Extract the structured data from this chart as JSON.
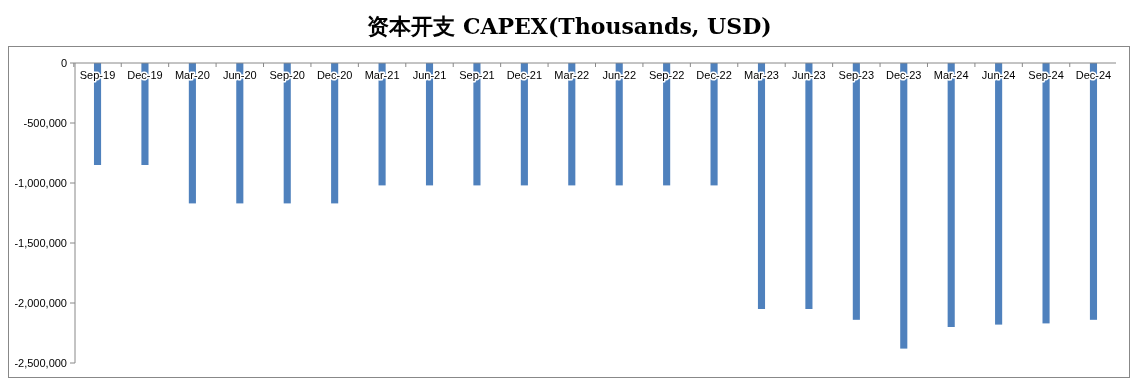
{
  "chart_data": {
    "type": "bar",
    "title": "资本开支 CAPEX(Thousands, USD)",
    "categories": [
      "Sep-19",
      "Dec-19",
      "Mar-20",
      "Jun-20",
      "Sep-20",
      "Dec-20",
      "Mar-21",
      "Jun-21",
      "Sep-21",
      "Dec-21",
      "Mar-22",
      "Jun-22",
      "Sep-22",
      "Dec-22",
      "Mar-23",
      "Jun-23",
      "Sep-23",
      "Dec-23",
      "Mar-24",
      "Jun-24",
      "Sep-24",
      "Dec-24"
    ],
    "values": [
      -850000,
      -850000,
      -1170000,
      -1170000,
      -1170000,
      -1170000,
      -1020000,
      -1020000,
      -1020000,
      -1020000,
      -1020000,
      -1020000,
      -1020000,
      -1020000,
      -2050000,
      -2050000,
      -2140000,
      -2380000,
      -2200000,
      -2180000,
      -2170000,
      -2140000
    ],
    "color": "#4f81bd",
    "ylim": [
      -2500000,
      0
    ],
    "yticks": [
      {
        "value": -2500000,
        "label": "-2,500,000"
      },
      {
        "value": -2000000,
        "label": "-2,000,000"
      },
      {
        "value": -1500000,
        "label": "-1,500,000"
      },
      {
        "value": -1000000,
        "label": "-1,000,000"
      },
      {
        "value": -500000,
        "label": "-500,000"
      },
      0
    ],
    "grid": false
  }
}
